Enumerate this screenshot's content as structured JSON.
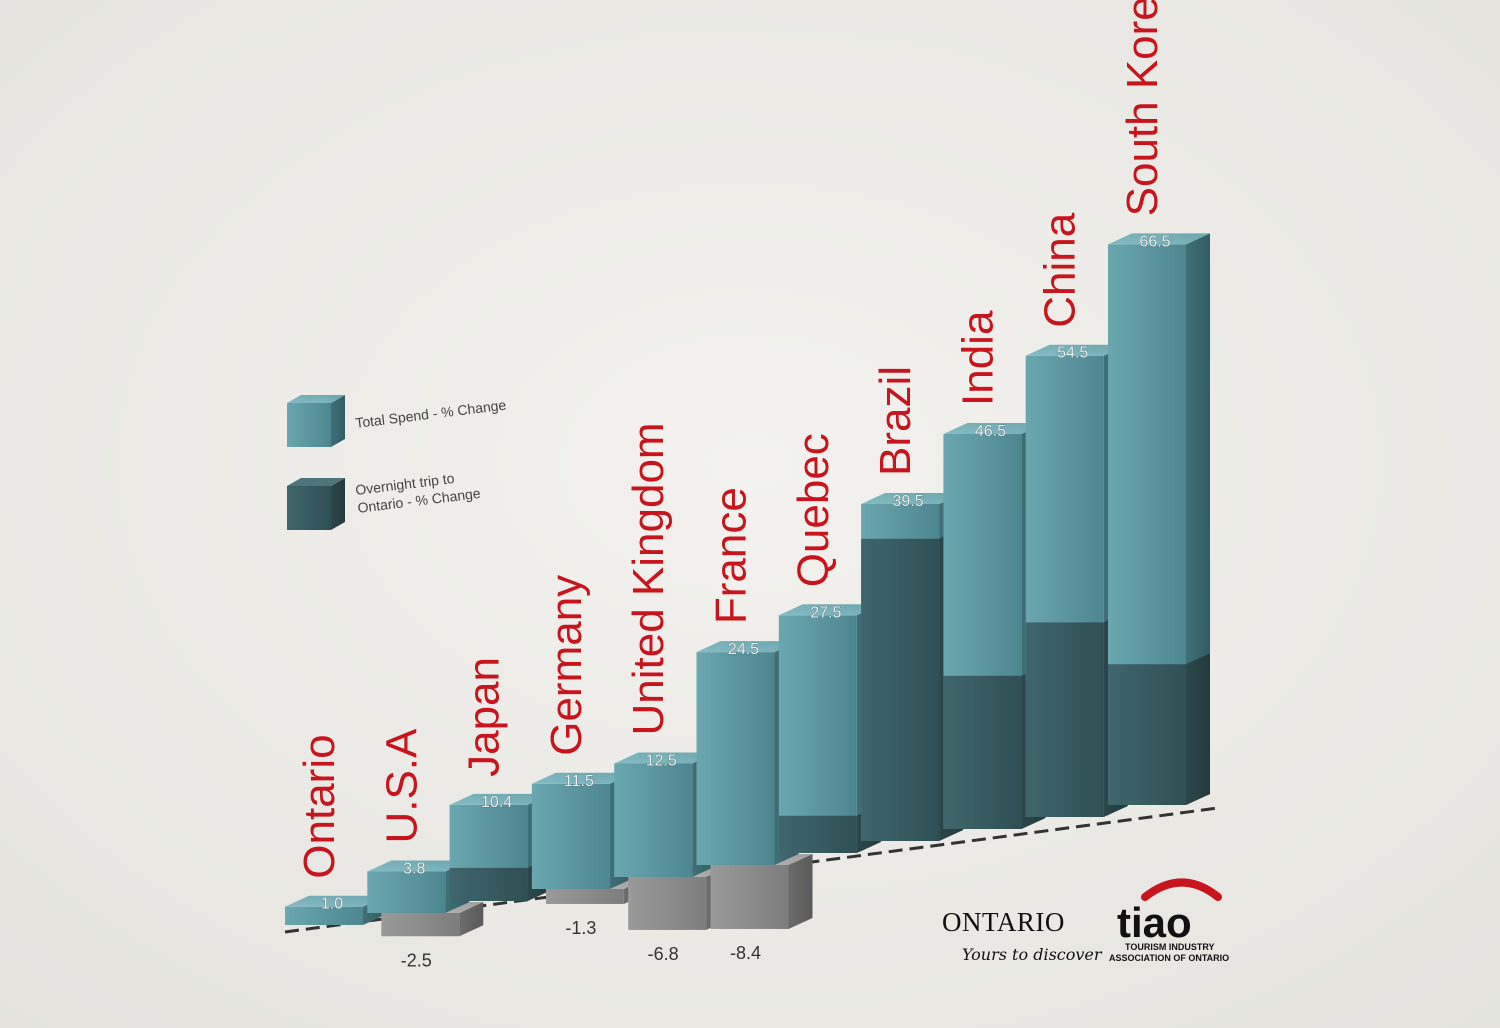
{
  "chart_data": {
    "type": "bar",
    "categories": [
      "Ontario",
      "U.S.A",
      "Japan",
      "Germany",
      "United Kingdom",
      "France",
      "Quebec",
      "Brazil",
      "India",
      "China",
      "South Korea"
    ],
    "series": [
      {
        "name": "Total Spend - % Change",
        "values": [
          1.0,
          3.8,
          10.4,
          11.5,
          12.5,
          24.5,
          27.5,
          39.5,
          46.5,
          54.5,
          66.5
        ],
        "labels": [
          "1.0",
          "3.8",
          "10.4",
          "11.5",
          "12.5",
          "24.5",
          "27.5",
          "39.5",
          "46.5",
          "54.5",
          "66.5"
        ]
      },
      {
        "name": "Overnight trip to Ontario - % Change",
        "values": [
          null,
          -2.5,
          4.0,
          -1.3,
          -6.8,
          -8.4,
          4.5,
          36.5,
          18.5,
          23.5,
          17.0
        ],
        "labels": [
          "",
          "-2.5",
          "",
          "-1.3",
          "-6.8",
          "-8.4",
          "",
          "",
          "",
          "",
          ""
        ]
      }
    ],
    "legend": [
      "Total Spend - % Change",
      "Overnight trip to Ontario - % Change"
    ],
    "legend_position": "left",
    "colors": {
      "total": "#5f9aa2",
      "overnight": "#3d6268",
      "negative": "#8e8e8e"
    },
    "grid": false,
    "title": "",
    "xlabel": "",
    "ylabel": ""
  },
  "logos": {
    "ontario_name": "ONTARIO",
    "ontario_tagline": "Yours to discover",
    "tiao_name": "tiao",
    "tiao_line1": "TOURISM INDUSTRY",
    "tiao_line2": "ASSOCIATION OF ONTARIO"
  }
}
